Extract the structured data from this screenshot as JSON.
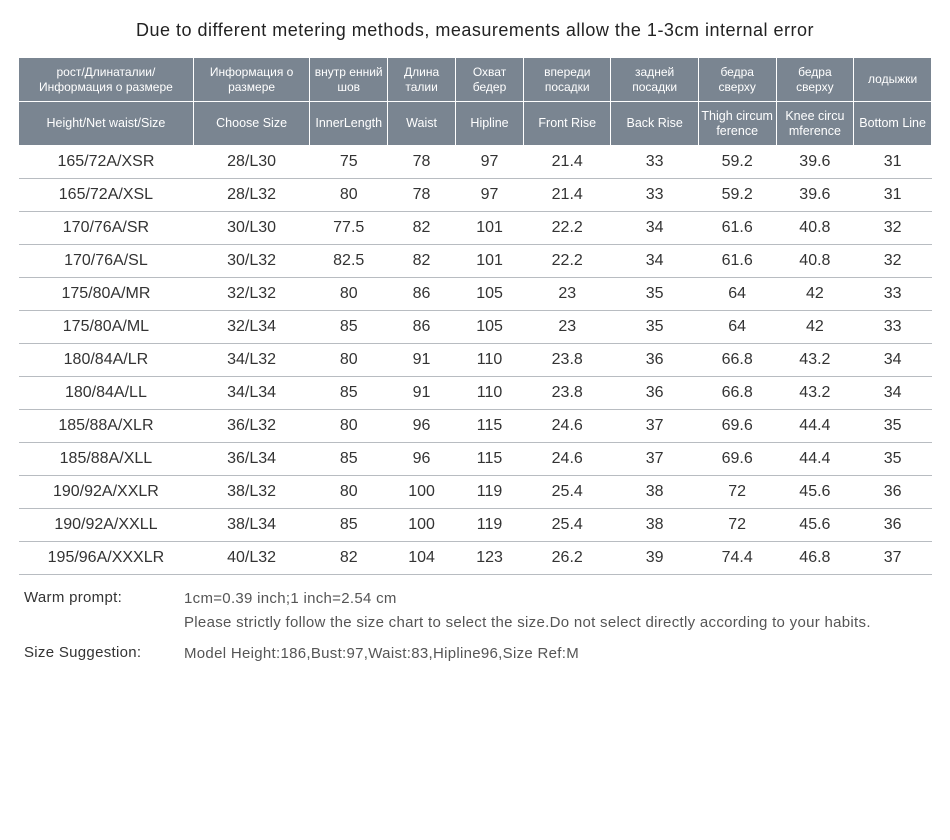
{
  "title": "Due to different metering methods, measurements allow the 1-3cm internal error",
  "colors": {
    "header_bg": "#7a8591",
    "header_text": "#ffffff",
    "row_border": "#b8bcc1",
    "body_text": "#333333",
    "page_bg": "#ffffff"
  },
  "col_widths_pct": [
    18,
    12,
    8,
    7,
    7,
    9,
    9,
    8,
    8,
    8
  ],
  "headers_ru": [
    "рост/Длинаталии/ Информация о размере",
    "Информация о размере",
    "внутр енний шов",
    "Длина талии",
    "Охват бедер",
    "впереди посадки",
    "задней посадки",
    "бедра сверху",
    "бедра сверху",
    "лодыжки"
  ],
  "headers_en": [
    "Height/Net waist/Size",
    "Choose Size",
    "InnerLength",
    "Waist",
    "Hipline",
    "Front Rise",
    "Back Rise",
    "Thigh circum ference",
    "Knee circu mference",
    "Bottom Line"
  ],
  "rows": [
    [
      "165/72A/XSR",
      "28/L30",
      "75",
      "78",
      "97",
      "21.4",
      "33",
      "59.2",
      "39.6",
      "31"
    ],
    [
      "165/72A/XSL",
      "28/L32",
      "80",
      "78",
      "97",
      "21.4",
      "33",
      "59.2",
      "39.6",
      "31"
    ],
    [
      "170/76A/SR",
      "30/L30",
      "77.5",
      "82",
      "101",
      "22.2",
      "34",
      "61.6",
      "40.8",
      "32"
    ],
    [
      "170/76A/SL",
      "30/L32",
      "82.5",
      "82",
      "101",
      "22.2",
      "34",
      "61.6",
      "40.8",
      "32"
    ],
    [
      "175/80A/MR",
      "32/L32",
      "80",
      "86",
      "105",
      "23",
      "35",
      "64",
      "42",
      "33"
    ],
    [
      "175/80A/ML",
      "32/L34",
      "85",
      "86",
      "105",
      "23",
      "35",
      "64",
      "42",
      "33"
    ],
    [
      "180/84A/LR",
      "34/L32",
      "80",
      "91",
      "110",
      "23.8",
      "36",
      "66.8",
      "43.2",
      "34"
    ],
    [
      "180/84A/LL",
      "34/L34",
      "85",
      "91",
      "110",
      "23.8",
      "36",
      "66.8",
      "43.2",
      "34"
    ],
    [
      "185/88A/XLR",
      "36/L32",
      "80",
      "96",
      "115",
      "24.6",
      "37",
      "69.6",
      "44.4",
      "35"
    ],
    [
      "185/88A/XLL",
      "36/L34",
      "85",
      "96",
      "115",
      "24.6",
      "37",
      "69.6",
      "44.4",
      "35"
    ],
    [
      "190/92A/XXLR",
      "38/L32",
      "80",
      "100",
      "119",
      "25.4",
      "38",
      "72",
      "45.6",
      "36"
    ],
    [
      "190/92A/XXLL",
      "38/L34",
      "85",
      "100",
      "119",
      "25.4",
      "38",
      "72",
      "45.6",
      "36"
    ],
    [
      "195/96A/XXXLR",
      "40/L32",
      "82",
      "104",
      "123",
      "26.2",
      "39",
      "74.4",
      "46.8",
      "37"
    ]
  ],
  "notes": {
    "warm_label": "Warm prompt:",
    "warm_line1": "1cm=0.39 inch;1 inch=2.54 cm",
    "warm_line2": "Please strictly follow the size chart  to select the size.Do not select directly according to your habits.",
    "suggest_label": "Size Suggestion:",
    "suggest_text": "Model Height:186,Bust:97,Waist:83,Hipline96,Size Ref:M"
  }
}
